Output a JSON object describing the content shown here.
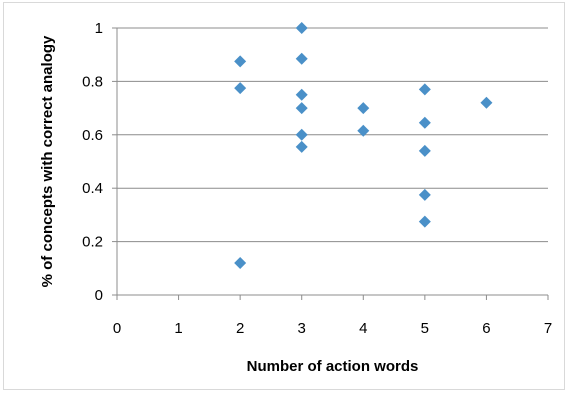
{
  "chart_data": {
    "type": "scatter",
    "xlabel": "Number of action words",
    "ylabel": "% of concepts with correct analogy",
    "xlim": [
      0,
      7
    ],
    "ylim": [
      0,
      1
    ],
    "x_ticks": [
      "0",
      "1",
      "2",
      "3",
      "4",
      "5",
      "6",
      "7"
    ],
    "y_ticks": [
      "0",
      "0.2",
      "0.4",
      "0.6",
      "0.8",
      "1"
    ],
    "grid": "horizontal",
    "legend": "none",
    "marker": "diamond",
    "marker_color": "#4a90c8",
    "gridline_color": "#8c8c8c",
    "series": [
      {
        "points": [
          [
            2,
            0.875
          ],
          [
            2,
            0.775
          ],
          [
            2,
            0.12
          ],
          [
            3,
            1.0
          ],
          [
            3,
            0.885
          ],
          [
            3,
            0.75
          ],
          [
            3,
            0.7
          ],
          [
            3,
            0.6
          ],
          [
            3,
            0.555
          ],
          [
            4,
            0.7
          ],
          [
            4,
            0.615
          ],
          [
            5,
            0.77
          ],
          [
            5,
            0.645
          ],
          [
            5,
            0.54
          ],
          [
            5,
            0.375
          ],
          [
            5,
            0.275
          ],
          [
            6,
            0.72
          ]
        ]
      }
    ]
  }
}
